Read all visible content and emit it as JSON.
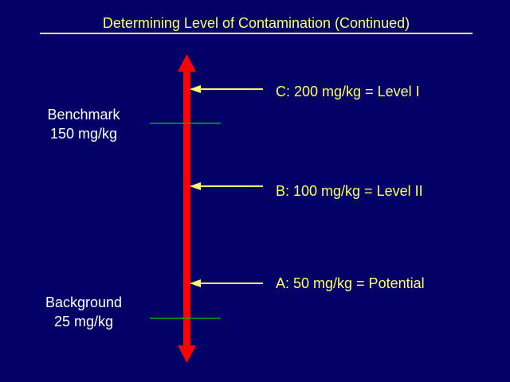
{
  "title": "Determining Level of Contamination (Continued)",
  "markers": [
    {
      "name": "Benchmark",
      "value": "150 mg/kg"
    },
    {
      "name": "Background",
      "value": "25 mg/kg"
    }
  ],
  "levels": [
    {
      "text": "C:  200 mg/kg = Level I"
    },
    {
      "text": "B:  100 mg/kg = Level II"
    },
    {
      "text": "A:  50 mg/kg = Potential"
    }
  ],
  "colors": {
    "background": "#000066",
    "title": "#ffff66",
    "axis_arrow": "#ff0000",
    "marker_line": "#00aa00",
    "level_arrow": "#ffff66",
    "marker_text": "#ffffff"
  }
}
